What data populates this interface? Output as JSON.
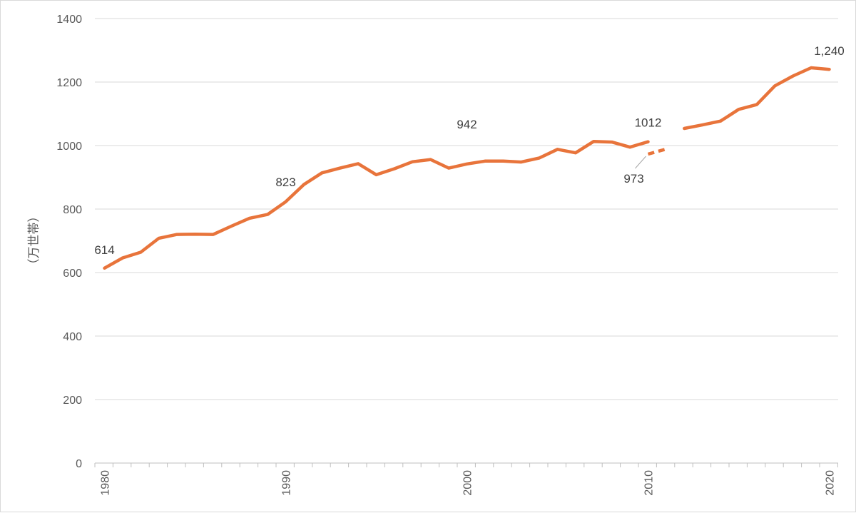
{
  "chart_data": {
    "type": "line",
    "title": "",
    "xlabel": "",
    "ylabel": "（万世帯）",
    "xlim": [
      1980,
      2020
    ],
    "ylim": [
      0,
      1400
    ],
    "y_ticks": [
      "0",
      "200",
      "400",
      "600",
      "800",
      "1000",
      "1200",
      "1400"
    ],
    "x_tick_labels": [
      "1980",
      "1990",
      "2000",
      "2010",
      "2020"
    ],
    "x_tick_values": [
      1980,
      1990,
      2000,
      2010,
      2020
    ],
    "grid": "horizontal",
    "legend": "none",
    "series": [
      {
        "style": "solid",
        "color": "#E8743B",
        "x": [
          1980,
          1981,
          1982,
          1983,
          1984,
          1985,
          1986,
          1987,
          1988,
          1989,
          1990,
          1991,
          1992,
          1993,
          1994,
          1995,
          1996,
          1997,
          1998,
          1999,
          2000,
          2001,
          2002,
          2003,
          2004,
          2005,
          2006,
          2007,
          2008,
          2009,
          2010
        ],
        "y": [
          614,
          646,
          664,
          708,
          720,
          721,
          720,
          746,
          771,
          783,
          823,
          877,
          914,
          929,
          943,
          908,
          927,
          949,
          956,
          929,
          942,
          951,
          951,
          948,
          961,
          988,
          977,
          1013,
          1011,
          995,
          1012
        ]
      },
      {
        "style": "dashed",
        "color": "#E8743B",
        "x": [
          2010,
          2011
        ],
        "y": [
          973,
          989
        ]
      },
      {
        "style": "solid",
        "color": "#E8743B",
        "x": [
          2012,
          2013,
          2014,
          2015,
          2016,
          2017,
          2018,
          2019,
          2020
        ],
        "y": [
          1054,
          1065,
          1077,
          1114,
          1129,
          1188,
          1219,
          1245,
          1240
        ]
      }
    ],
    "annotations": [
      {
        "text": "614",
        "x": 1980,
        "y": 614
      },
      {
        "text": "823",
        "x": 1990,
        "y": 823
      },
      {
        "text": "942",
        "x": 2000,
        "y": 942
      },
      {
        "text": "1012",
        "x": 2010,
        "y": 1012
      },
      {
        "text": "973",
        "x": 2010,
        "y": 973
      },
      {
        "text": "1,240",
        "x": 2020,
        "y": 1240
      }
    ]
  }
}
